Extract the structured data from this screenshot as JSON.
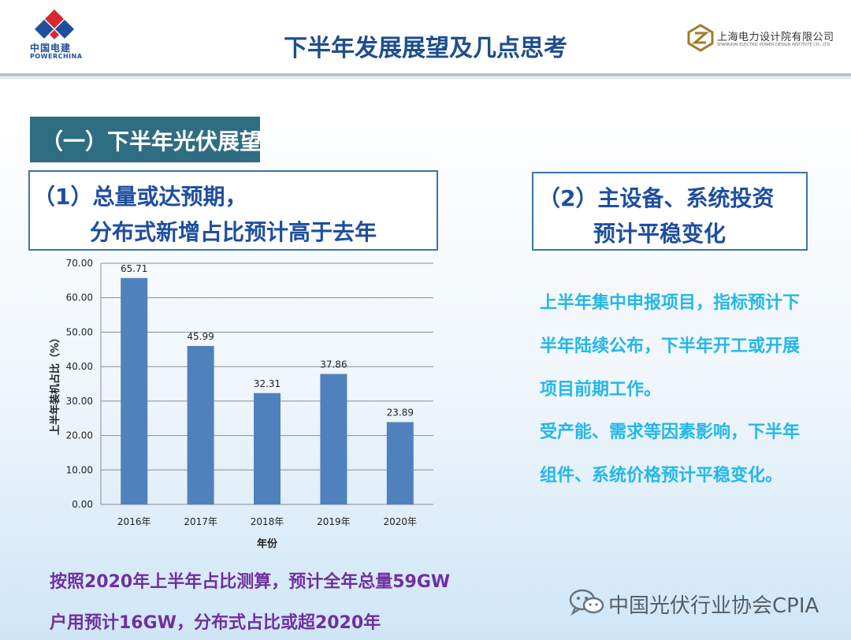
{
  "header": {
    "title": "下半年发展展望及几点思考",
    "left_logo": {
      "cn": "中国电建",
      "en": "POWERCHINA"
    },
    "right_logo": {
      "cn": "上海电力设计院有限公司",
      "en": "SHANGHAI ELECTRIC POWER DESIGN INSTITUTE CO., LTD."
    }
  },
  "section": {
    "title": "（一）下半年光伏展望"
  },
  "left_box": {
    "line1": "（1）总量或达预期，",
    "line2": "分布式新增占比预计高于去年"
  },
  "right_box": {
    "line1": "（2）主设备、系统投资",
    "line2": "预计平稳变化"
  },
  "right_text": [
    "上半年集中申报项目，指标预计下",
    "半年陆续公布，下半年开工或开展",
    "项目前期工作。",
    "受产能、需求等因素影响，下半年",
    "组件、系统价格预计平稳变化。"
  ],
  "bottom_text": [
    "按照2020年上半年占比测算，预计全年总量59GW",
    "户用预计16GW，分布式占比或超2020年"
  ],
  "watermark": {
    "text": "中国光伏行业协会CPIA"
  },
  "chart_data": {
    "type": "bar",
    "categories": [
      "2016年",
      "2017年",
      "2018年",
      "2019年",
      "2020年"
    ],
    "values": [
      65.71,
      45.99,
      32.31,
      37.86,
      23.89
    ],
    "value_labels": [
      "65.71",
      "45.99",
      "32.31",
      "37.86",
      "23.89"
    ],
    "yticks": [
      "0.00",
      "10.00",
      "20.00",
      "30.00",
      "40.00",
      "50.00",
      "60.00",
      "70.00"
    ],
    "ylim": [
      0,
      70
    ],
    "xlabel": "年份",
    "ylabel": "上半年装机占比（%）",
    "grid": true,
    "bar_color": "#4f81bd"
  }
}
